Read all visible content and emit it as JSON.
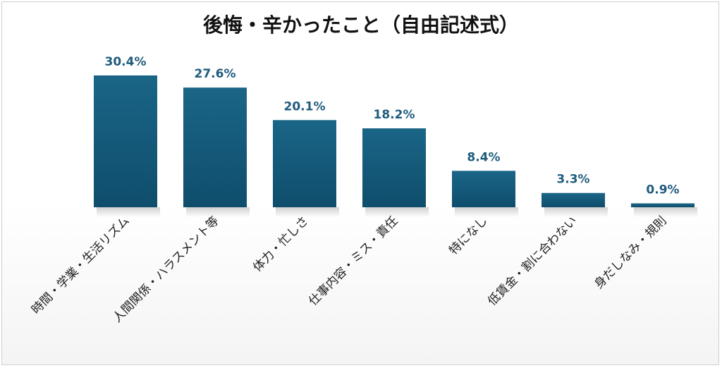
{
  "chart_data": {
    "type": "bar",
    "title": "後悔・辛かったこと（自由記述式）",
    "categories": [
      "時間・学業・生活リズム",
      "人間関係・ハラスメント等",
      "体力・忙しさ",
      "仕事内容・ミス・責任",
      "特になし",
      "低賃金・割に合わない",
      "身だしなみ・規則"
    ],
    "values": [
      30.4,
      27.6,
      20.1,
      18.2,
      8.4,
      3.3,
      0.9
    ],
    "data_labels": [
      "30.4%",
      "27.6%",
      "20.1%",
      "18.2%",
      "8.4%",
      "3.3%",
      "0.9%"
    ],
    "unit": "%",
    "ylim": [
      0,
      30.4
    ],
    "grid": false,
    "legend": "none",
    "bar_color": "#175e80",
    "bar_color_dark": "#0f4a68",
    "label_color": "#1f5b7d"
  }
}
